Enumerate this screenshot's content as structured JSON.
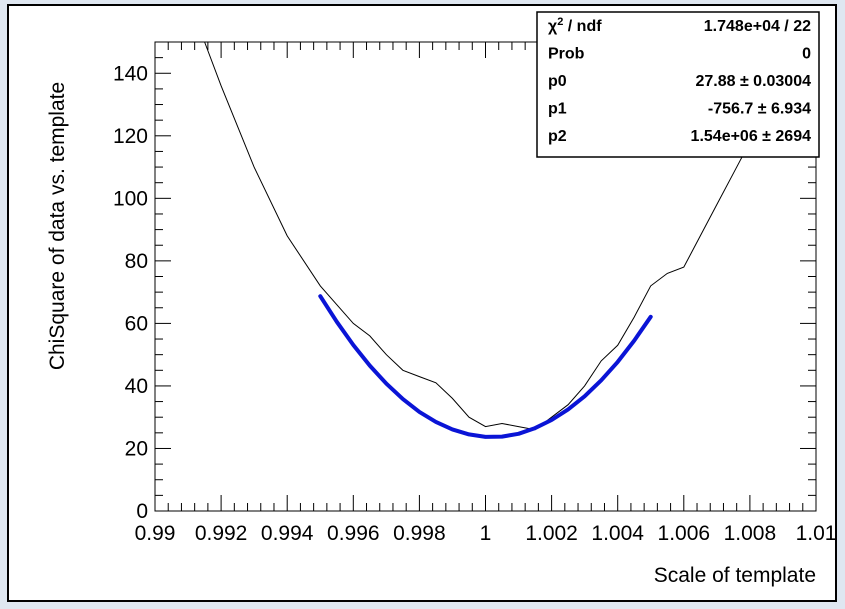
{
  "colors": {
    "canvas_bg": "#ffffff",
    "outer_border": "#000000",
    "page_bg": "#dfe7f1",
    "data_line": "#000000",
    "fit_line": "#0a14d6"
  },
  "chart_data": {
    "type": "line",
    "title": "",
    "xlabel": "Scale of template",
    "ylabel": "ChiSquare of data vs. template",
    "xlim": [
      0.99,
      1.01
    ],
    "ylim": [
      0,
      150
    ],
    "grid": false,
    "x_tick_labels": [
      {
        "x": 0.99,
        "label": "0.99"
      },
      {
        "x": 0.992,
        "label": "0.992"
      },
      {
        "x": 0.994,
        "label": "0.994"
      },
      {
        "x": 0.996,
        "label": "0.996"
      },
      {
        "x": 0.998,
        "label": "0.998"
      },
      {
        "x": 1.0,
        "label": "1"
      },
      {
        "x": 1.002,
        "label": "1.002"
      },
      {
        "x": 1.004,
        "label": "1.004"
      },
      {
        "x": 1.006,
        "label": "1.006"
      },
      {
        "x": 1.008,
        "label": "1.008"
      },
      {
        "x": 1.01,
        "label": "1.01"
      }
    ],
    "y_tick_labels": [
      {
        "y": 0,
        "label": "0"
      },
      {
        "y": 20,
        "label": "20"
      },
      {
        "y": 40,
        "label": "40"
      },
      {
        "y": 60,
        "label": "60"
      },
      {
        "y": 80,
        "label": "80"
      },
      {
        "y": 100,
        "label": "100"
      },
      {
        "y": 120,
        "label": "120"
      },
      {
        "y": 140,
        "label": "140"
      }
    ],
    "series": [
      {
        "x": [
          0.9915,
          0.992,
          0.993,
          0.994,
          0.995,
          0.996,
          0.9965,
          0.997,
          0.9975,
          0.998,
          0.9985,
          0.999,
          0.9995,
          1.0,
          1.0005,
          1.001,
          1.0015,
          1.002,
          1.0025,
          1.003,
          1.0035,
          1.004,
          1.0045,
          1.005,
          1.0055,
          1.006,
          1.0065,
          1.007,
          1.0075,
          1.008,
          1.0085
        ],
        "y": [
          150,
          136,
          110,
          88,
          72,
          60,
          56,
          50,
          45,
          43,
          41,
          36,
          30,
          27,
          28,
          27,
          26,
          30,
          34,
          40,
          48,
          53,
          62,
          72,
          76,
          78,
          88,
          98,
          108,
          118,
          140
        ]
      },
      {
        "x": [
          0.995,
          0.9955,
          0.996,
          0.9965,
          0.997,
          0.9975,
          0.998,
          0.9985,
          0.999,
          0.9995,
          1.0,
          1.0005,
          1.001,
          1.0015,
          1.002,
          1.0025,
          1.003,
          1.0035,
          1.004,
          1.0045,
          1.005
        ],
        "y": [
          68.7,
          60.5,
          53.1,
          46.5,
          40.7,
          35.8,
          31.7,
          28.5,
          26.1,
          24.5,
          23.7,
          23.8,
          24.7,
          26.5,
          29.1,
          32.5,
          36.7,
          41.8,
          47.7,
          54.5,
          62.1
        ]
      }
    ]
  },
  "stats_box": {
    "rows": [
      {
        "label_main": "χ",
        "label_sup": "2",
        "label_rest": " / ndf",
        "value": "1.748e+04 / 22"
      },
      {
        "label_main": "Prob",
        "label_sup": "",
        "label_rest": "",
        "value": "0"
      },
      {
        "label_main": "p0",
        "label_sup": "",
        "label_rest": "",
        "value": "27.88 ± 0.03004"
      },
      {
        "label_main": "p1",
        "label_sup": "",
        "label_rest": "",
        "value": "-756.7 ± 6.934"
      },
      {
        "label_main": "p2",
        "label_sup": "",
        "label_rest": "",
        "value": "1.54e+06 ±  2694"
      }
    ]
  }
}
